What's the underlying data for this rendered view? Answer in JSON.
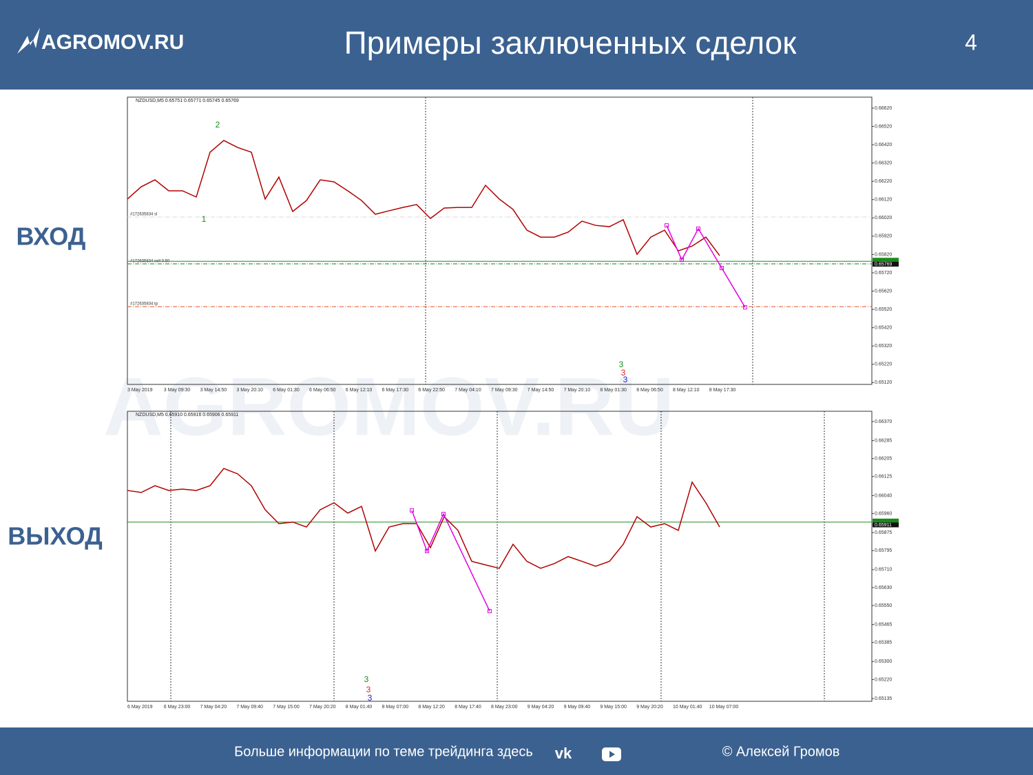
{
  "header": {
    "logo": "AGROMOV.RU",
    "title": "Примеры заключенных сделок",
    "page": 4
  },
  "labels": {
    "entry": "ВХОД",
    "exit": "ВЫХОД"
  },
  "footer": {
    "info": "Больше информации по теме трейдинга здесь",
    "author": "© Алексей Громов"
  },
  "chart_data": [
    {
      "type": "line",
      "title": "NZDUSD,M5  0.65751 0.65771 0.65745 0.65769",
      "ylim": [
        0.6511,
        0.6668
      ],
      "yticks": [
        {
          "value": 0.6662,
          "label": "0.66620"
        },
        {
          "value": 0.6652,
          "label": "0.66520"
        },
        {
          "value": 0.6642,
          "label": "0.66420"
        },
        {
          "value": 0.6632,
          "label": "0.66320"
        },
        {
          "value": 0.6622,
          "label": "0.66220"
        },
        {
          "value": 0.6612,
          "label": "0.66120"
        },
        {
          "value": 0.6602,
          "label": "0.66020"
        },
        {
          "value": 0.6592,
          "label": "0.65920"
        },
        {
          "value": 0.6582,
          "label": "0.65820"
        },
        {
          "value": 0.6572,
          "label": "0.65720"
        },
        {
          "value": 0.6562,
          "label": "0.65620"
        },
        {
          "value": 0.6552,
          "label": "0.65520"
        },
        {
          "value": 0.6542,
          "label": "0.65420"
        },
        {
          "value": 0.6532,
          "label": "0.65320"
        },
        {
          "value": 0.6522,
          "label": "0.65220"
        },
        {
          "value": 0.6512,
          "label": "0.65120"
        }
      ],
      "x_labels": [
        "3 May 2019",
        "3 May 09:30",
        "3 May 14:50",
        "3 May 20:10",
        "6 May 01:30",
        "6 May 06:50",
        "6 May 12:10",
        "6 May 17:30",
        "6 May 22:50",
        "7 May 04:10",
        "7 May 09:30",
        "7 May 14:50",
        "7 May 20:10",
        "8 May 01:30",
        "8 May 06:50",
        "8 May 12:10",
        "8 May 17:30"
      ],
      "series": [
        {
          "color": "#b00000",
          "values": [
            0.66123,
            0.6619,
            0.66228,
            0.66168,
            0.66168,
            0.66134,
            0.66379,
            0.66443,
            0.66405,
            0.66379,
            0.66123,
            0.66243,
            0.66055,
            0.66115,
            0.66228,
            0.66217,
            0.66168,
            0.66115,
            0.6604,
            0.66059,
            0.66077,
            0.66093,
            0.66017,
            0.66074,
            0.66077,
            0.66077,
            0.66198,
            0.66123,
            0.66066,
            0.65953,
            0.65915,
            0.65915,
            0.65942,
            0.66002,
            0.65979,
            0.65972,
            0.6601,
            0.65821,
            0.65915,
            0.65953,
            0.6584,
            0.65866,
            0.65915,
            0.65814
          ]
        }
      ],
      "zigzag": {
        "color": "#e000e0",
        "values": [
          0.65979,
          0.65791,
          0.65961,
          0.65746,
          0.65531
        ]
      },
      "levels": [
        {
          "name": "#172635834 sl",
          "value": 0.66025,
          "color": "#d8d8d8"
        },
        {
          "name": "#172635834 sell 0.50",
          "value": 0.65769,
          "color": "#1a7a1a"
        },
        {
          "name": "#172635834 tp",
          "value": 0.65535,
          "color": "#e05020"
        }
      ],
      "bid": 0.65783,
      "price_label": 0.65769
    },
    {
      "type": "line",
      "title": "NZDUSD,M5  0.65910 0.65916 0.65906 0.65911",
      "ylim": [
        0.65123,
        0.66416
      ],
      "yticks": [
        {
          "value": 0.6637,
          "label": "0.66370"
        },
        0.66285,
        0.66205,
        0.66125,
        {
          "value": 0.6604,
          "label": "0.66040"
        },
        {
          "value": 0.6596,
          "label": "0.65960"
        },
        0.65875,
        0.65795,
        {
          "value": 0.6571,
          "label": "0.65710"
        },
        {
          "value": 0.6563,
          "label": "0.65630"
        },
        {
          "value": 0.6555,
          "label": "0.65550"
        },
        0.65465,
        0.65385,
        {
          "value": 0.653,
          "label": "0.65300"
        },
        {
          "value": 0.6522,
          "label": "0.65220"
        },
        0.65135
      ],
      "x_labels": [
        "6 May 2019",
        "6 May 23:00",
        "7 May 04:20",
        "7 May 09:40",
        "7 May 15:00",
        "7 May 20:20",
        "8 May 01:40",
        "8 May 07:00",
        "8 May 12:20",
        "8 May 17:40",
        "8 May 23:00",
        "9 May 04:20",
        "9 May 09:40",
        "9 May 15:00",
        "9 May 20:20",
        "10 May 01:40",
        "10 May 07:00"
      ],
      "series": [
        {
          "color": "#b00000",
          "values": [
            0.66063,
            0.66054,
            0.66084,
            0.66063,
            0.66069,
            0.66063,
            0.66084,
            0.66161,
            0.66137,
            0.66084,
            0.65977,
            0.65915,
            0.65922,
            0.659,
            0.65977,
            0.66008,
            0.65962,
            0.65992,
            0.65793,
            0.659,
            0.65915,
            0.65915,
            0.65808,
            0.65946,
            0.65885,
            0.65747,
            0.65731,
            0.65716,
            0.65823,
            0.65747,
            0.65716,
            0.65737,
            0.65768,
            0.65747,
            0.65725,
            0.65747,
            0.65823,
            0.65946,
            0.659,
            0.65915,
            0.65885,
            0.661,
            0.66008,
            0.659
          ]
        }
      ],
      "zigzag": {
        "color": "#e000e0",
        "values": [
          0.65974,
          0.65793,
          0.65958,
          0.65525
        ]
      },
      "levels": [],
      "bid": 0.65922,
      "price_label": 0.65911
    }
  ]
}
